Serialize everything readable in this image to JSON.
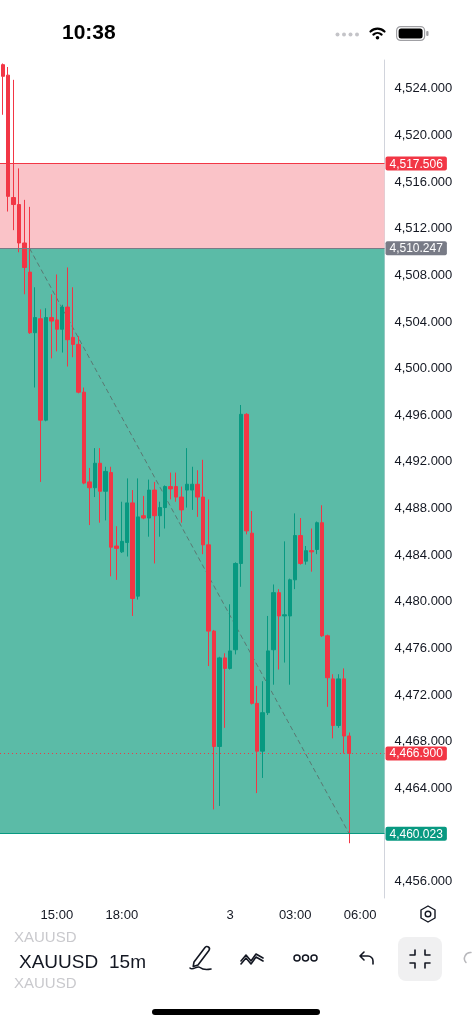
{
  "chart_data": {
    "type": "candlestick",
    "title": "XAUUSD",
    "subtitle": "15m",
    "annotations": [
      "10:38",
      "XAUUSD",
      "XAUUSD"
    ],
    "categories": [
      null,
      null,
      null,
      null,
      null,
      null,
      null,
      null,
      null,
      null,
      "15:00",
      null,
      null,
      null,
      null,
      null,
      null,
      null,
      null,
      null,
      null,
      null,
      "18:00",
      null,
      null,
      null,
      null,
      null,
      null,
      null,
      null,
      null,
      null,
      null,
      null,
      null,
      null,
      null,
      null,
      null,
      null,
      null,
      "3",
      null,
      null,
      null,
      null,
      null,
      null,
      null,
      null,
      null,
      null,
      null,
      "03:00",
      null,
      null,
      null,
      null,
      null,
      null,
      null,
      null,
      null,
      null,
      null,
      "06:00",
      null,
      null,
      null,
      null
    ],
    "ylim": [
      4454.5,
      4526.4
    ],
    "yticks": [
      {
        "value": 4456,
        "label": "4,456.000"
      },
      {
        "value": 4464,
        "label": "4,464.000"
      },
      {
        "value": 4468,
        "label": "4,468.000"
      },
      {
        "value": 4472,
        "label": "4,472.000"
      },
      {
        "value": 4476,
        "label": "4,476.000"
      },
      {
        "value": 4480,
        "label": "4,480.000"
      },
      {
        "value": 4484,
        "label": "4,484.000"
      },
      {
        "value": 4488,
        "label": "4,488.000"
      },
      {
        "value": 4492,
        "label": "4,492.000"
      },
      {
        "value": 4496,
        "label": "4,496.000"
      },
      {
        "value": 4500,
        "label": "4,500.000"
      },
      {
        "value": 4504,
        "label": "4,504.000"
      },
      {
        "value": 4508,
        "label": "4,508.000"
      },
      {
        "value": 4512,
        "label": "4,512.000"
      },
      {
        "value": 4516,
        "label": "4,516.000"
      },
      {
        "value": 4520,
        "label": "4,520.000"
      },
      {
        "value": 4524,
        "label": "4,524.000"
      }
    ],
    "series": [
      {
        "ohlc": [
          [
            4526.0,
            4526.1,
            4521.7,
            4525.0
          ],
          [
            4525.1,
            4525.8,
            4513.4,
            4514.7
          ],
          [
            4514.6,
            4524.7,
            4511.8,
            4514.0
          ],
          [
            4514.0,
            4517.1,
            4509.9,
            4510.7
          ],
          [
            4510.7,
            4514.4,
            4506.3,
            4508.6
          ],
          [
            4508.2,
            4513.8,
            4502.9,
            4503.0
          ],
          [
            4503.0,
            4506.9,
            4498.3,
            4504.3
          ],
          [
            4504.2,
            4505.0,
            4490.2,
            4495.5
          ],
          [
            4495.5,
            4505.1,
            4495.4,
            4504.3
          ],
          [
            4504.3,
            4506.3,
            4500.8,
            4504.0
          ],
          [
            4504.1,
            4508.0,
            4501.4,
            4503.3
          ],
          [
            4503.3,
            4505.4,
            4501.3,
            4505.2
          ],
          [
            4505.2,
            4508.6,
            4500.1,
            4502.4
          ],
          [
            4502.6,
            4506.9,
            4500.9,
            4502.0
          ],
          [
            4502.0,
            4502.7,
            4497.8,
            4497.9
          ],
          [
            4497.9,
            4498.3,
            4490.0,
            4490.1
          ],
          [
            4490.2,
            4491.4,
            4486.5,
            4489.7
          ],
          [
            4489.7,
            4493.1,
            4488.9,
            4491.8
          ],
          [
            4491.8,
            4493.1,
            4486.7,
            4489.4
          ],
          [
            4489.4,
            4491.5,
            4486.9,
            4491.1
          ],
          [
            4491.0,
            4491.5,
            4482.1,
            4484.6
          ],
          [
            4484.7,
            4486.4,
            4481.8,
            4484.5
          ],
          [
            4484.2,
            4488.5,
            4484.1,
            4485.1
          ],
          [
            4485.0,
            4490.5,
            4483.8,
            4488.4
          ],
          [
            4488.4,
            4489.5,
            4478.7,
            4480.2
          ],
          [
            4480.4,
            4490.5,
            4480.1,
            4487.2
          ],
          [
            4487.3,
            4489.0,
            4487.0,
            4487.1
          ],
          [
            4487.1,
            4490.4,
            4485.5,
            4489.5
          ],
          [
            4489.5,
            4490.2,
            4483.2,
            4487.3
          ],
          [
            4487.3,
            4488.5,
            4485.5,
            4488.0
          ],
          [
            4488.0,
            4489.9,
            4486.2,
            4489.8
          ],
          [
            4489.8,
            4491.0,
            4488.7,
            4489.6
          ],
          [
            4489.8,
            4491.0,
            4488.5,
            4488.9
          ],
          [
            4488.9,
            4489.8,
            4486.7,
            4487.8
          ],
          [
            4489.5,
            4493.1,
            4488.0,
            4490.0
          ],
          [
            4489.5,
            4491.5,
            4487.8,
            4490.0
          ],
          [
            4490.0,
            4491.2,
            4487.2,
            4488.9
          ],
          [
            4488.9,
            4492.1,
            4484.0,
            4484.8
          ],
          [
            4484.8,
            4488.7,
            4474.4,
            4477.4
          ],
          [
            4477.4,
            4477.5,
            4462.1,
            4467.5
          ],
          [
            4467.5,
            4475.2,
            4462.4,
            4475.1
          ],
          [
            4475.1,
            4475.5,
            4469.1,
            4474.2
          ],
          [
            4474.2,
            4479.7,
            4474.1,
            4475.7
          ],
          [
            4475.8,
            4483.3,
            4475.4,
            4483.2
          ],
          [
            4483.2,
            4496.8,
            4481.2,
            4496.0
          ],
          [
            4496.0,
            4496.1,
            4485.7,
            4486.0
          ],
          [
            4485.8,
            4487.7,
            4471.1,
            4471.2
          ],
          [
            4471.2,
            4472.7,
            4463.5,
            4467.1
          ],
          [
            4467.1,
            4473.1,
            4464.8,
            4470.4
          ],
          [
            4470.4,
            4478.7,
            4470.2,
            4475.7
          ],
          [
            4475.8,
            4481.4,
            4472.8,
            4480.7
          ],
          [
            4480.7,
            4481.0,
            4474.1,
            4478.7
          ],
          [
            4478.7,
            4485.1,
            4474.7,
            4478.8
          ],
          [
            4478.7,
            4481.9,
            4472.8,
            4481.8
          ],
          [
            4481.8,
            4487.5,
            4481.0,
            4485.6
          ],
          [
            4485.6,
            4487.1,
            4483.1,
            4483.2
          ],
          [
            4483.4,
            4484.7,
            4483.1,
            4484.3
          ],
          [
            4484.3,
            4486.2,
            4482.5,
            4484.2
          ],
          [
            4484.4,
            4486.8,
            4484.0,
            4486.7
          ],
          [
            4486.7,
            4488.2,
            4476.9,
            4477.0
          ],
          [
            4477.0,
            4477.1,
            4470.9,
            4473.4
          ],
          [
            4473.3,
            4473.7,
            4468.2,
            4469.3
          ],
          [
            4469.3,
            4473.7,
            4469.1,
            4473.3
          ],
          [
            4473.3,
            4474.2,
            4466.9,
            4468.4
          ],
          [
            4468.4,
            4468.7,
            4459.2,
            4466.9
          ],
          null,
          null,
          null,
          null,
          null,
          null
        ],
        "colors": [
          "#f23645",
          "#f23645",
          "#f23645",
          "#f23645",
          "#f23645",
          "#f23645",
          "#089981",
          "#f23645",
          "#089981",
          "#f23645",
          "#f23645",
          "#089981",
          "#f23645",
          "#f23645",
          "#f23645",
          "#f23645",
          "#f23645",
          "#089981",
          "#f23645",
          "#089981",
          "#f23645",
          "#f23645",
          "#089981",
          "#089981",
          "#f23645",
          "#089981",
          "#f23645",
          "#089981",
          "#f23645",
          "#089981",
          "#089981",
          "#f23645",
          "#f23645",
          "#f23645",
          "#089981",
          "#089981",
          "#f23645",
          "#f23645",
          "#f23645",
          "#f23645",
          "#089981",
          "#f23645",
          "#089981",
          "#089981",
          "#089981",
          "#f23645",
          "#f23645",
          "#f23645",
          "#089981",
          "#089981",
          "#089981",
          "#f23645",
          "#089981",
          "#089981",
          "#089981",
          "#f23645",
          "#089981",
          "#f23645",
          "#089981",
          "#f23645",
          "#f23645",
          "#f23645",
          "#089981",
          "#f23645",
          "#f23645",
          null,
          null,
          null,
          null,
          null,
          null
        ]
      },
      {
        "type": "line",
        "color": "#5a7872",
        "line_style": "dashed",
        "marker": "none",
        "values": [
          null,
          null,
          null,
          null,
          null,
          4510.2,
          null,
          null,
          null,
          null,
          null,
          null,
          null,
          null,
          null,
          null,
          null,
          null,
          null,
          null,
          null,
          null,
          null,
          null,
          null,
          null,
          null,
          null,
          null,
          null,
          null,
          null,
          null,
          null,
          null,
          null,
          null,
          null,
          null,
          null,
          null,
          null,
          null,
          null,
          null,
          null,
          null,
          null,
          null,
          null,
          null,
          null,
          null,
          null,
          null,
          null,
          null,
          null,
          null,
          null,
          null,
          null,
          null,
          null,
          4460.0,
          null,
          null,
          null,
          null,
          null,
          null
        ]
      }
    ],
    "bands": [
      {
        "axis": "y",
        "from": 4510.247,
        "to": 4517.506,
        "color": "#fac3c8"
      },
      {
        "axis": "y",
        "from": 4460.023,
        "to": 4510.247,
        "color": "#5bbba7"
      }
    ],
    "ref_lines": [
      {
        "axis": "y",
        "value": 4517.506,
        "label": "4,517.506",
        "color": "#f23645",
        "line_style": "solid"
      },
      {
        "axis": "y",
        "value": 4510.247,
        "label": "4,510.247",
        "color": "#787b86",
        "line_style": "solid"
      },
      {
        "axis": "y",
        "value": 4460.023,
        "label": "4,460.023",
        "color": "#089981",
        "line_style": "solid"
      },
      {
        "axis": "y",
        "value": 4466.9,
        "label": "4,466.900",
        "color": "#f23645",
        "line_style": "dotted"
      }
    ]
  }
}
